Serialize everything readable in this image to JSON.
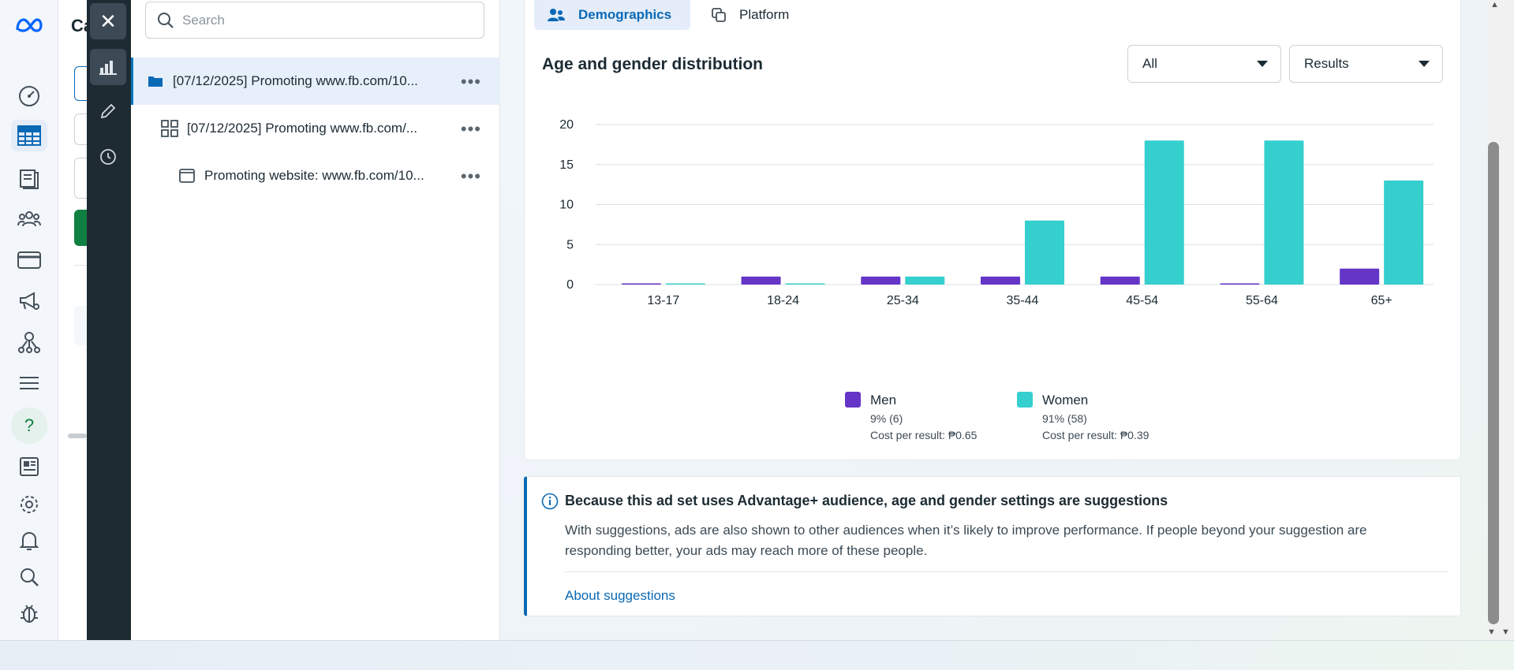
{
  "tree": {
    "search_placeholder": "Search",
    "items": [
      {
        "label": "[07/12/2025] Promoting www.fb.com/10..."
      },
      {
        "label": "[07/12/2025] Promoting www.fb.com/..."
      },
      {
        "label": "Promoting website: www.fb.com/10..."
      }
    ],
    "more_label": "•••"
  },
  "under_panel": {
    "title_fragment": "Ca"
  },
  "tabs": {
    "demographics": "Demographics",
    "platform": "Platform"
  },
  "section": {
    "title": "Age and gender distribution",
    "filter_value": "All",
    "metric_value": "Results"
  },
  "chart_data": {
    "type": "bar",
    "categories": [
      "13-17",
      "18-24",
      "25-34",
      "35-44",
      "45-54",
      "55-64",
      "65+"
    ],
    "series": [
      {
        "name": "Men",
        "values": [
          0,
          1,
          1,
          1,
          1,
          0,
          2
        ],
        "color": "#6535c8"
      },
      {
        "name": "Women",
        "values": [
          0,
          0,
          1,
          8,
          18,
          18,
          13
        ],
        "color": "#35cfce"
      }
    ],
    "yticks": [
      "0",
      "5",
      "10",
      "15",
      "20"
    ],
    "ylim": [
      0,
      20
    ],
    "grid": true,
    "legend_position": "bottom"
  },
  "legend": {
    "men": {
      "name": "Men",
      "share": "9% (6)",
      "cost": "Cost per result: ₱0.65"
    },
    "women": {
      "name": "Women",
      "share": "91% (58)",
      "cost": "Cost per result: ₱0.39"
    }
  },
  "notice": {
    "title": "Because this ad set uses Advantage+ audience, age and gender settings are suggestions",
    "body": "With suggestions, ads are also shown to other audiences when it’s likely to improve performance. If people beyond your suggestion are responding better, your ads may reach more of these people.",
    "link": "About suggestions"
  },
  "help_label": "?",
  "colors": {
    "accent": "#0a69b5",
    "men": "#6535c8",
    "women": "#35cfce",
    "rail": "#1f2b33"
  }
}
